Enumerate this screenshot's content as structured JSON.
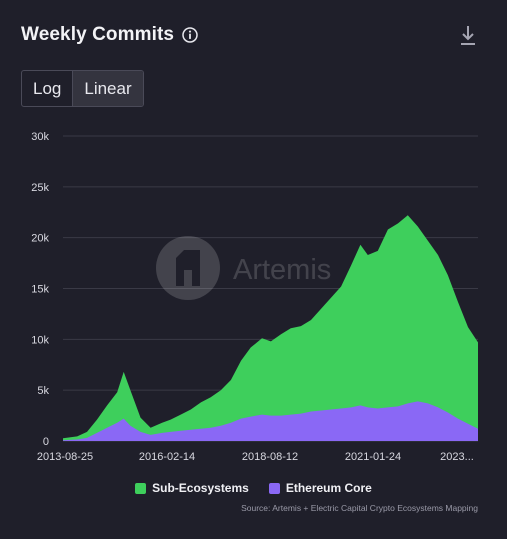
{
  "header": {
    "title": "Weekly Commits",
    "info_icon": "info-icon",
    "download_icon": "download-icon"
  },
  "scale_toggle": {
    "options": [
      "Log",
      "Linear"
    ],
    "selected": "Linear"
  },
  "watermark": {
    "text": "Artemis",
    "logo_icon": "artemis-logo-icon"
  },
  "colors": {
    "sub": "#3ecf5c",
    "eth": "#8a68f5",
    "grid": "#3a3a46",
    "background": "#1f1f2a"
  },
  "chart_data": {
    "type": "area",
    "stacked": true,
    "ylim": [
      0,
      30000
    ],
    "yticks": [
      0,
      5000,
      10000,
      15000,
      20000,
      25000,
      30000
    ],
    "ytick_labels": [
      "0",
      "5k",
      "10k",
      "15k",
      "20k",
      "25k",
      "30k"
    ],
    "xtick_labels": [
      "2013-08-25",
      "2016-02-14",
      "2018-08-12",
      "2021-01-24",
      "2023..."
    ],
    "xlim": [
      "2013-08-25",
      "2023-12-31"
    ],
    "grid": true,
    "legend_position": "bottom",
    "series": [
      {
        "name": "Sub-Ecosystems",
        "x": [
          "2013-08-25",
          "2014-01-01",
          "2014-04-01",
          "2014-07-01",
          "2014-10-01",
          "2015-01-01",
          "2015-03-01",
          "2015-05-01",
          "2015-08-01",
          "2015-11-01",
          "2016-02-14",
          "2016-05-01",
          "2016-08-01",
          "2016-11-01",
          "2017-02-01",
          "2017-05-01",
          "2017-08-01",
          "2017-11-01",
          "2018-02-01",
          "2018-05-01",
          "2018-08-12",
          "2018-11-01",
          "2019-02-01",
          "2019-05-01",
          "2019-08-01",
          "2019-11-01",
          "2020-02-01",
          "2020-05-01",
          "2020-08-01",
          "2020-11-01",
          "2021-01-24",
          "2021-04-01",
          "2021-07-01",
          "2021-10-01",
          "2022-01-01",
          "2022-04-01",
          "2022-07-01",
          "2022-10-01",
          "2023-01-01",
          "2023-04-01",
          "2023-07-01",
          "2023-10-01",
          "2023-12-31"
        ],
        "values": [
          200,
          300,
          600,
          1300,
          2200,
          3000,
          4600,
          3500,
          1400,
          700,
          1000,
          1200,
          1600,
          2000,
          2600,
          3000,
          3500,
          4200,
          5700,
          6800,
          7500,
          7300,
          8000,
          8500,
          8600,
          9000,
          10000,
          11000,
          12000,
          14000,
          15800,
          15000,
          15500,
          17500,
          18000,
          18500,
          17200,
          16000,
          15000,
          13500,
          11500,
          9500,
          8500
        ]
      },
      {
        "name": "Ethereum Core",
        "x": [
          "2013-08-25",
          "2014-01-01",
          "2014-04-01",
          "2014-07-01",
          "2014-10-01",
          "2015-01-01",
          "2015-03-01",
          "2015-05-01",
          "2015-08-01",
          "2015-11-01",
          "2016-02-14",
          "2016-05-01",
          "2016-08-01",
          "2016-11-01",
          "2017-02-01",
          "2017-05-01",
          "2017-08-01",
          "2017-11-01",
          "2018-02-01",
          "2018-05-01",
          "2018-08-12",
          "2018-11-01",
          "2019-02-01",
          "2019-05-01",
          "2019-08-01",
          "2019-11-01",
          "2020-02-01",
          "2020-05-01",
          "2020-08-01",
          "2020-11-01",
          "2021-01-24",
          "2021-04-01",
          "2021-07-01",
          "2021-10-01",
          "2022-01-01",
          "2022-04-01",
          "2022-07-01",
          "2022-10-01",
          "2023-01-01",
          "2023-04-01",
          "2023-07-01",
          "2023-10-01",
          "2023-12-31"
        ],
        "values": [
          80,
          150,
          300,
          800,
          1300,
          1800,
          2200,
          1500,
          900,
          600,
          800,
          900,
          1000,
          1100,
          1200,
          1300,
          1500,
          1800,
          2200,
          2400,
          2600,
          2500,
          2500,
          2600,
          2700,
          2900,
          3000,
          3100,
          3200,
          3300,
          3500,
          3300,
          3200,
          3300,
          3400,
          3700,
          3900,
          3700,
          3300,
          2800,
          2200,
          1700,
          1200
        ]
      }
    ]
  },
  "source_text": "Source: Artemis + Electric Capital Crypto Ecosystems Mapping"
}
